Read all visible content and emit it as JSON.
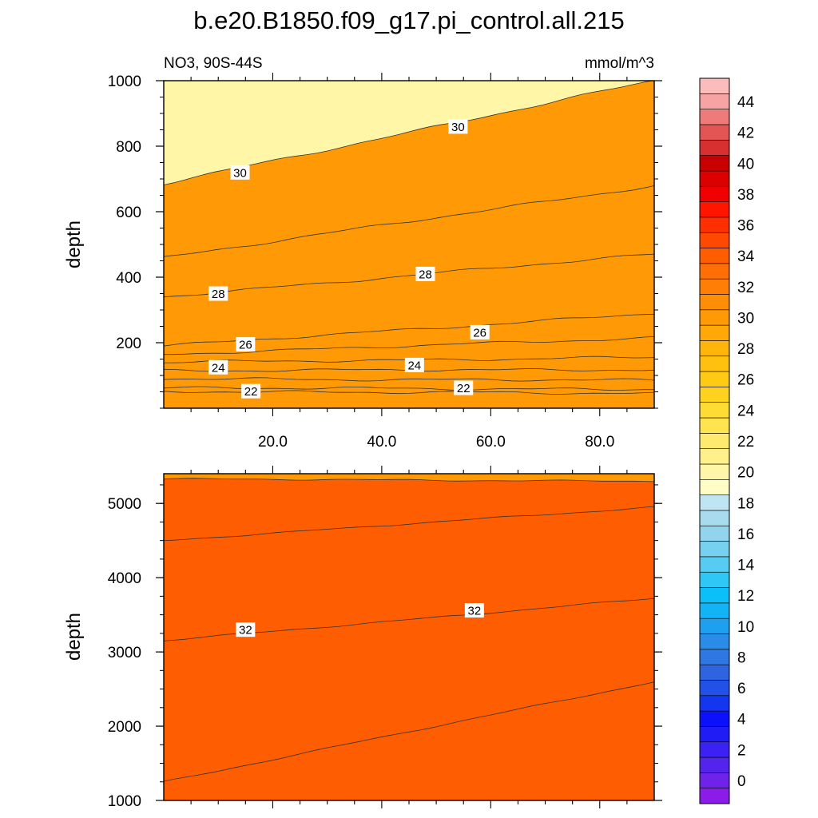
{
  "title": "b.e20.B1850.f09_g17.pi_control.all.215",
  "variable_label": "NO3, 90S-44S",
  "units_label": "mmol/m^3",
  "colors": {
    "palette": [
      "#8b1be8",
      "#6f22ea",
      "#5524ec",
      "#3b22f2",
      "#1f1cf6",
      "#0b12fb",
      "#1536f1",
      "#2350e6",
      "#2e64e0",
      "#2f78e4",
      "#2a8ce9",
      "#1f9ff0",
      "#12b4f6",
      "#0bc0f8",
      "#2fc7f5",
      "#57ccf3",
      "#78d0f1",
      "#92d4ee",
      "#a9dbef",
      "#bfe5f4",
      "#fffcc6",
      "#fff6a7",
      "#fff08c",
      "#ffea70",
      "#ffe34f",
      "#ffdc33",
      "#ffd21e",
      "#ffca14",
      "#ffc10e",
      "#ffb50a",
      "#ffa808",
      "#ff9a06",
      "#ff8d05",
      "#ff7f04",
      "#ff6f03",
      "#ff5d02",
      "#ff4800",
      "#ff2f00",
      "#ff1500",
      "#f00000",
      "#dc0000",
      "#c80000",
      "#d83030",
      "#e35555",
      "#ee7a7a",
      "#f6a3a3",
      "#fbbcbc"
    ],
    "contour_line": "#333333",
    "axis": "#000000"
  },
  "chart_data": [
    {
      "type": "contour",
      "panel": "upper",
      "xlabel": "",
      "ylabel": "depth",
      "xlim": [
        0,
        90
      ],
      "ylim": [
        1000,
        0
      ],
      "x_ticks": [
        "20.0",
        "40.0",
        "60.0",
        "80.0"
      ],
      "y_ticks": [
        "200",
        "400",
        "600",
        "800",
        "1000"
      ],
      "contours": [
        {
          "level": 21,
          "y0": 52,
          "y1": 45
        },
        {
          "level": 22,
          "y0": 62,
          "y1": 58
        },
        {
          "level": 23,
          "y0": 90,
          "y1": 85
        },
        {
          "level": 24,
          "y0": 115,
          "y1": 118
        },
        {
          "level": 25,
          "y0": 140,
          "y1": 155
        },
        {
          "level": 26,
          "y0": 165,
          "y1": 215
        },
        {
          "level": 27,
          "y0": 190,
          "y1": 290
        },
        {
          "level": 28,
          "y0": 340,
          "y1": 470
        },
        {
          "level": 29,
          "y0": 460,
          "y1": 680
        },
        {
          "level": 30,
          "y0": 685,
          "y1": 1000
        }
      ],
      "contour_labels": [
        {
          "text": "22",
          "x": 16,
          "y": 52
        },
        {
          "text": "22",
          "x": 55,
          "y": 62
        },
        {
          "text": "24",
          "x": 10,
          "y": 125
        },
        {
          "text": "24",
          "x": 46,
          "y": 132
        },
        {
          "text": "26",
          "x": 15,
          "y": 195
        },
        {
          "text": "26",
          "x": 58,
          "y": 232
        },
        {
          "text": "28",
          "x": 10,
          "y": 350
        },
        {
          "text": "28",
          "x": 48,
          "y": 410
        },
        {
          "text": "30",
          "x": 14,
          "y": 720
        },
        {
          "text": "30",
          "x": 54,
          "y": 860
        }
      ]
    },
    {
      "type": "contour",
      "panel": "lower",
      "xlabel": "",
      "ylabel": "depth",
      "xlim": [
        0,
        90
      ],
      "ylim": [
        5400,
        1000
      ],
      "x_ticks": [],
      "y_ticks": [
        "1000",
        "2000",
        "3000",
        "4000",
        "5000"
      ],
      "contours": [
        {
          "level": 31,
          "y0": 1250,
          "y1": 2600
        },
        {
          "level": 32,
          "y0": 3150,
          "y1": 3720
        },
        {
          "level": 33,
          "y0": 4500,
          "y1": 4950
        },
        {
          "level": 34,
          "y0": 5330,
          "y1": 5300
        }
      ],
      "contour_labels": [
        {
          "text": "32",
          "x": 15,
          "y": 3300
        },
        {
          "text": "32",
          "x": 57,
          "y": 3560
        }
      ]
    }
  ],
  "colorbar": {
    "min": -1,
    "max": 46,
    "step": 1,
    "labels": [
      "0",
      "2",
      "4",
      "6",
      "8",
      "10",
      "12",
      "14",
      "16",
      "18",
      "20",
      "22",
      "24",
      "26",
      "28",
      "30",
      "32",
      "34",
      "36",
      "38",
      "40",
      "42",
      "44"
    ]
  }
}
